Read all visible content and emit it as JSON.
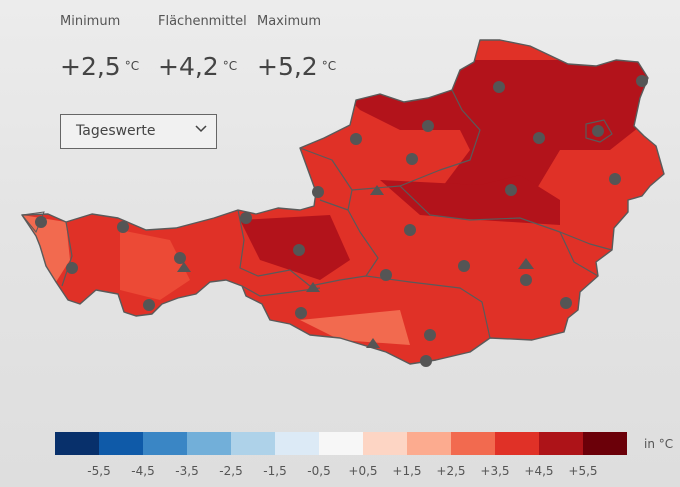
{
  "stats": [
    {
      "label": "Minimum",
      "value": "+2,5",
      "unit": "°C"
    },
    {
      "label": "Flächenmittel",
      "value": "+4,2",
      "unit": "°C"
    },
    {
      "label": "Maximum",
      "value": "+5,2",
      "unit": "°C"
    }
  ],
  "dropdown": {
    "selected": "Tageswerte"
  },
  "legend": {
    "colors": [
      "#08306b",
      "#0f5aa8",
      "#3a86c5",
      "#72afd9",
      "#aed2e9",
      "#dceaf6",
      "#f7f7f7",
      "#fdd5c4",
      "#fcab8f",
      "#f26a4f",
      "#e03127",
      "#ad1318",
      "#6b0009"
    ],
    "ticks": [
      "-5,5",
      "-4,5",
      "-3,5",
      "-2,5",
      "-1,5",
      "-0,5",
      "+0,5",
      "+1,5",
      "+2,5",
      "+3,5",
      "+4,5",
      "+5,5"
    ],
    "unit": "in °C"
  },
  "map": {
    "base_color": "#e03127",
    "warm_color": "#b3131b",
    "cool_color": "#f26a4f",
    "border_color": "#5a5a5a",
    "marker_color": "#555555"
  }
}
